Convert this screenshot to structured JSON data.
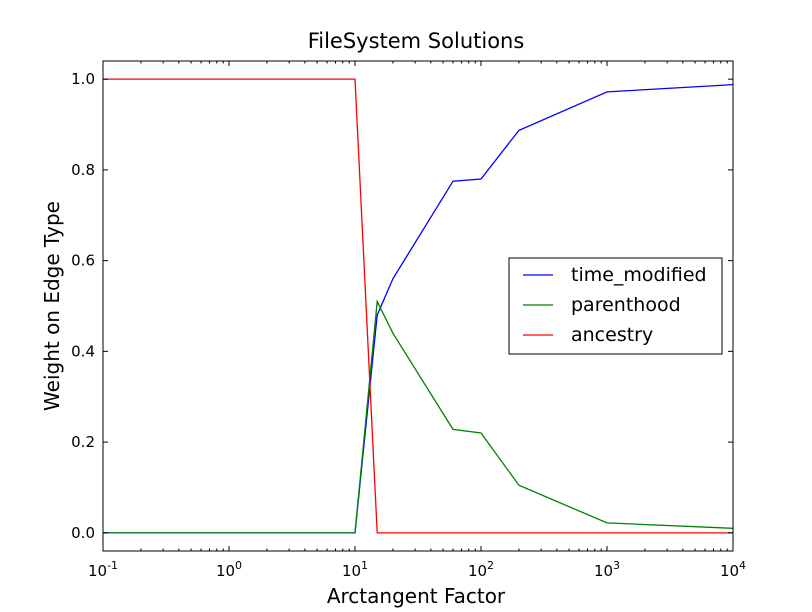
{
  "chart_data": {
    "type": "line",
    "title": "FileSystem Solutions",
    "xlabel": "Arctangent Factor",
    "ylabel": "Weight on Edge Type",
    "xscale": "log",
    "xlim": [
      0.1,
      10000
    ],
    "ylim": [
      -0.04,
      1.04
    ],
    "x_ticks": [
      {
        "base": "10",
        "exp": "-1",
        "value": 0.1
      },
      {
        "base": "10",
        "exp": "0",
        "value": 1
      },
      {
        "base": "10",
        "exp": "1",
        "value": 10
      },
      {
        "base": "10",
        "exp": "2",
        "value": 100
      },
      {
        "base": "10",
        "exp": "3",
        "value": 1000
      },
      {
        "base": "10",
        "exp": "4",
        "value": 10000
      }
    ],
    "y_ticks": [
      "0.0",
      "0.2",
      "0.4",
      "0.6",
      "0.8",
      "1.0"
    ],
    "grid": false,
    "legend_position": "center-right",
    "x": [
      0.1,
      10,
      15,
      20,
      60,
      100,
      200,
      1000,
      10000
    ],
    "series": [
      {
        "name": "time_modified",
        "color": "#0000ff",
        "values": [
          0.0,
          0.0,
          0.48,
          0.56,
          0.775,
          0.78,
          0.887,
          0.972,
          0.988
        ]
      },
      {
        "name": "parenthood",
        "color": "#008000",
        "values": [
          0.0,
          0.0,
          0.51,
          0.44,
          0.228,
          0.22,
          0.105,
          0.022,
          0.01
        ]
      },
      {
        "name": "ancestry",
        "color": "#ff0000",
        "values": [
          1.0,
          1.0,
          0.0,
          0.0,
          0.0,
          0.0,
          0.0,
          0.0,
          0.0
        ]
      }
    ]
  }
}
